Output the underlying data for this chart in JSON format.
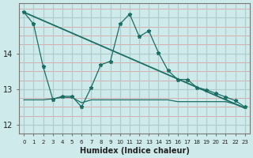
{
  "xlabel": "Humidex (Indice chaleur)",
  "bg_color": "#ceeaea",
  "line_color": "#1a6e64",
  "xlim": [
    -0.5,
    23.5
  ],
  "ylim": [
    11.75,
    15.4
  ],
  "yticks": [
    12,
    13,
    14
  ],
  "xticks": [
    0,
    1,
    2,
    3,
    4,
    5,
    6,
    7,
    8,
    9,
    10,
    11,
    12,
    13,
    14,
    15,
    16,
    17,
    18,
    19,
    20,
    21,
    22,
    23
  ],
  "minor_grid_color": "#d8a0a0",
  "major_grid_color": "#b0cccc",
  "trend_x": [
    0,
    23
  ],
  "trend_y": [
    15.15,
    12.47
  ],
  "zigzag_x": [
    0,
    1,
    2,
    3,
    4,
    5,
    6,
    7,
    8,
    9,
    10,
    11,
    12,
    13,
    14,
    15,
    16,
    17,
    18,
    19,
    20,
    21,
    22,
    23
  ],
  "zigzag_y": [
    15.15,
    14.82,
    13.63,
    12.72,
    12.8,
    12.8,
    12.5,
    13.05,
    13.68,
    13.78,
    14.82,
    15.1,
    14.47,
    14.63,
    14.02,
    13.52,
    13.27,
    13.27,
    13.05,
    12.98,
    12.88,
    12.78,
    12.68,
    12.5
  ],
  "flat_x": [
    0,
    1,
    2,
    3,
    4,
    5,
    6,
    7,
    8,
    9,
    10,
    11,
    12,
    13,
    14,
    15,
    16,
    17,
    18,
    19,
    20,
    21,
    22,
    23
  ],
  "flat_y": [
    12.7,
    12.7,
    12.7,
    12.73,
    12.77,
    12.77,
    12.62,
    12.7,
    12.7,
    12.7,
    12.7,
    12.7,
    12.7,
    12.7,
    12.7,
    12.7,
    12.65,
    12.65,
    12.65,
    12.65,
    12.65,
    12.65,
    12.58,
    12.47
  ]
}
